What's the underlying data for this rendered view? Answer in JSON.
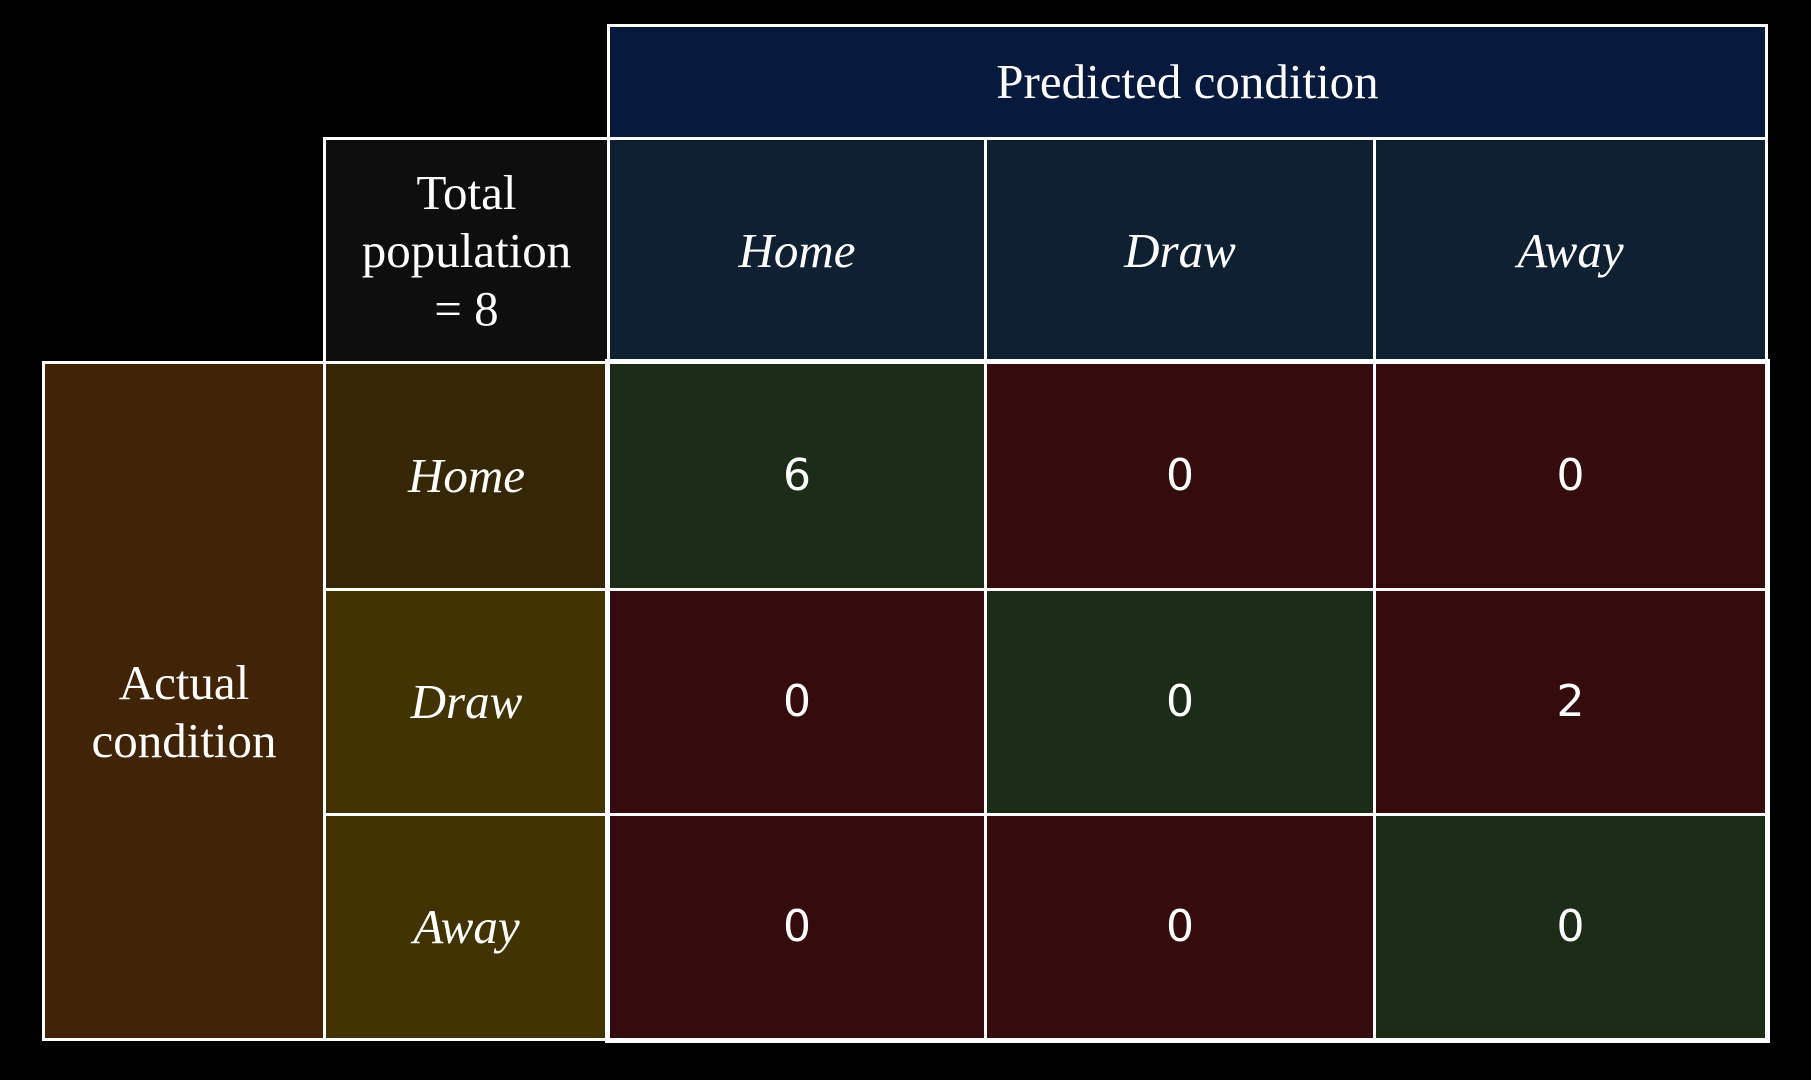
{
  "header": {
    "predicted_label": "Predicted condition",
    "total_population": "Total population = 8",
    "actual_label": "Actual condition"
  },
  "columns": [
    "Home",
    "Draw",
    "Away"
  ],
  "rows": [
    "Home",
    "Draw",
    "Away"
  ],
  "matrix": [
    [
      "6",
      "0",
      "0"
    ],
    [
      "0",
      "0",
      "2"
    ],
    [
      "0",
      "0",
      "0"
    ]
  ],
  "colors": {
    "predicted_header_bg": "#071a3d",
    "column_header_bg": "#0f2033",
    "total_bg": "#0e0e0e",
    "actual_bg": "#412306",
    "row_header_home_bg": "#352703",
    "row_header_bg": "#423302",
    "correct_bg": "#1c2c16",
    "incorrect_bg": "#360b0e",
    "border": "#ffffff"
  }
}
